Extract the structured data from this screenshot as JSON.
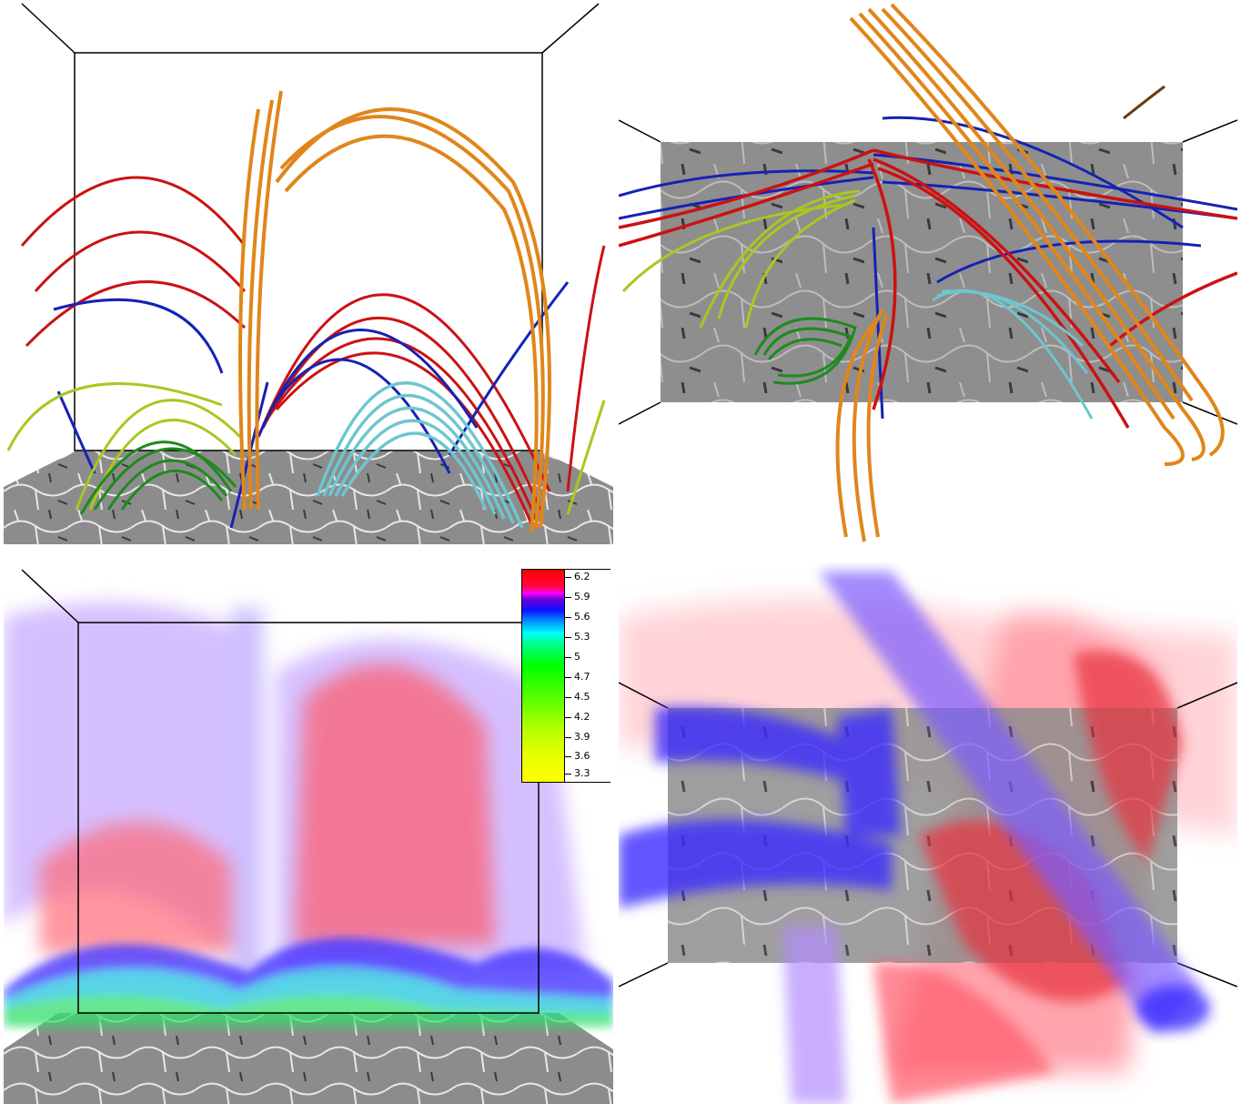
{
  "panels": [
    {
      "id": "p1",
      "view": "side",
      "rendering": "field-lines"
    },
    {
      "id": "p2",
      "view": "top",
      "rendering": "field-lines"
    },
    {
      "id": "p3",
      "view": "side",
      "rendering": "volume"
    },
    {
      "id": "p4",
      "view": "top",
      "rendering": "volume"
    }
  ],
  "colors": {
    "red": "#cc1111",
    "blue": "#1522b5",
    "orange": "#e0861a",
    "cyan": "#6ec6cf",
    "yellow_green": "#a8c820",
    "green": "#1f8a1f",
    "floor_gray": "#8a8a8a",
    "volume_red": "#ff5a6a",
    "volume_violet": "#9a5cff",
    "volume_blue": "#3a2bff"
  },
  "legend": {
    "ticks": [
      "6.2",
      "5.9",
      "5.6",
      "5.3",
      "5",
      "4.7",
      "4.5",
      "4.2",
      "3.9",
      "3.6",
      "3.3"
    ]
  }
}
